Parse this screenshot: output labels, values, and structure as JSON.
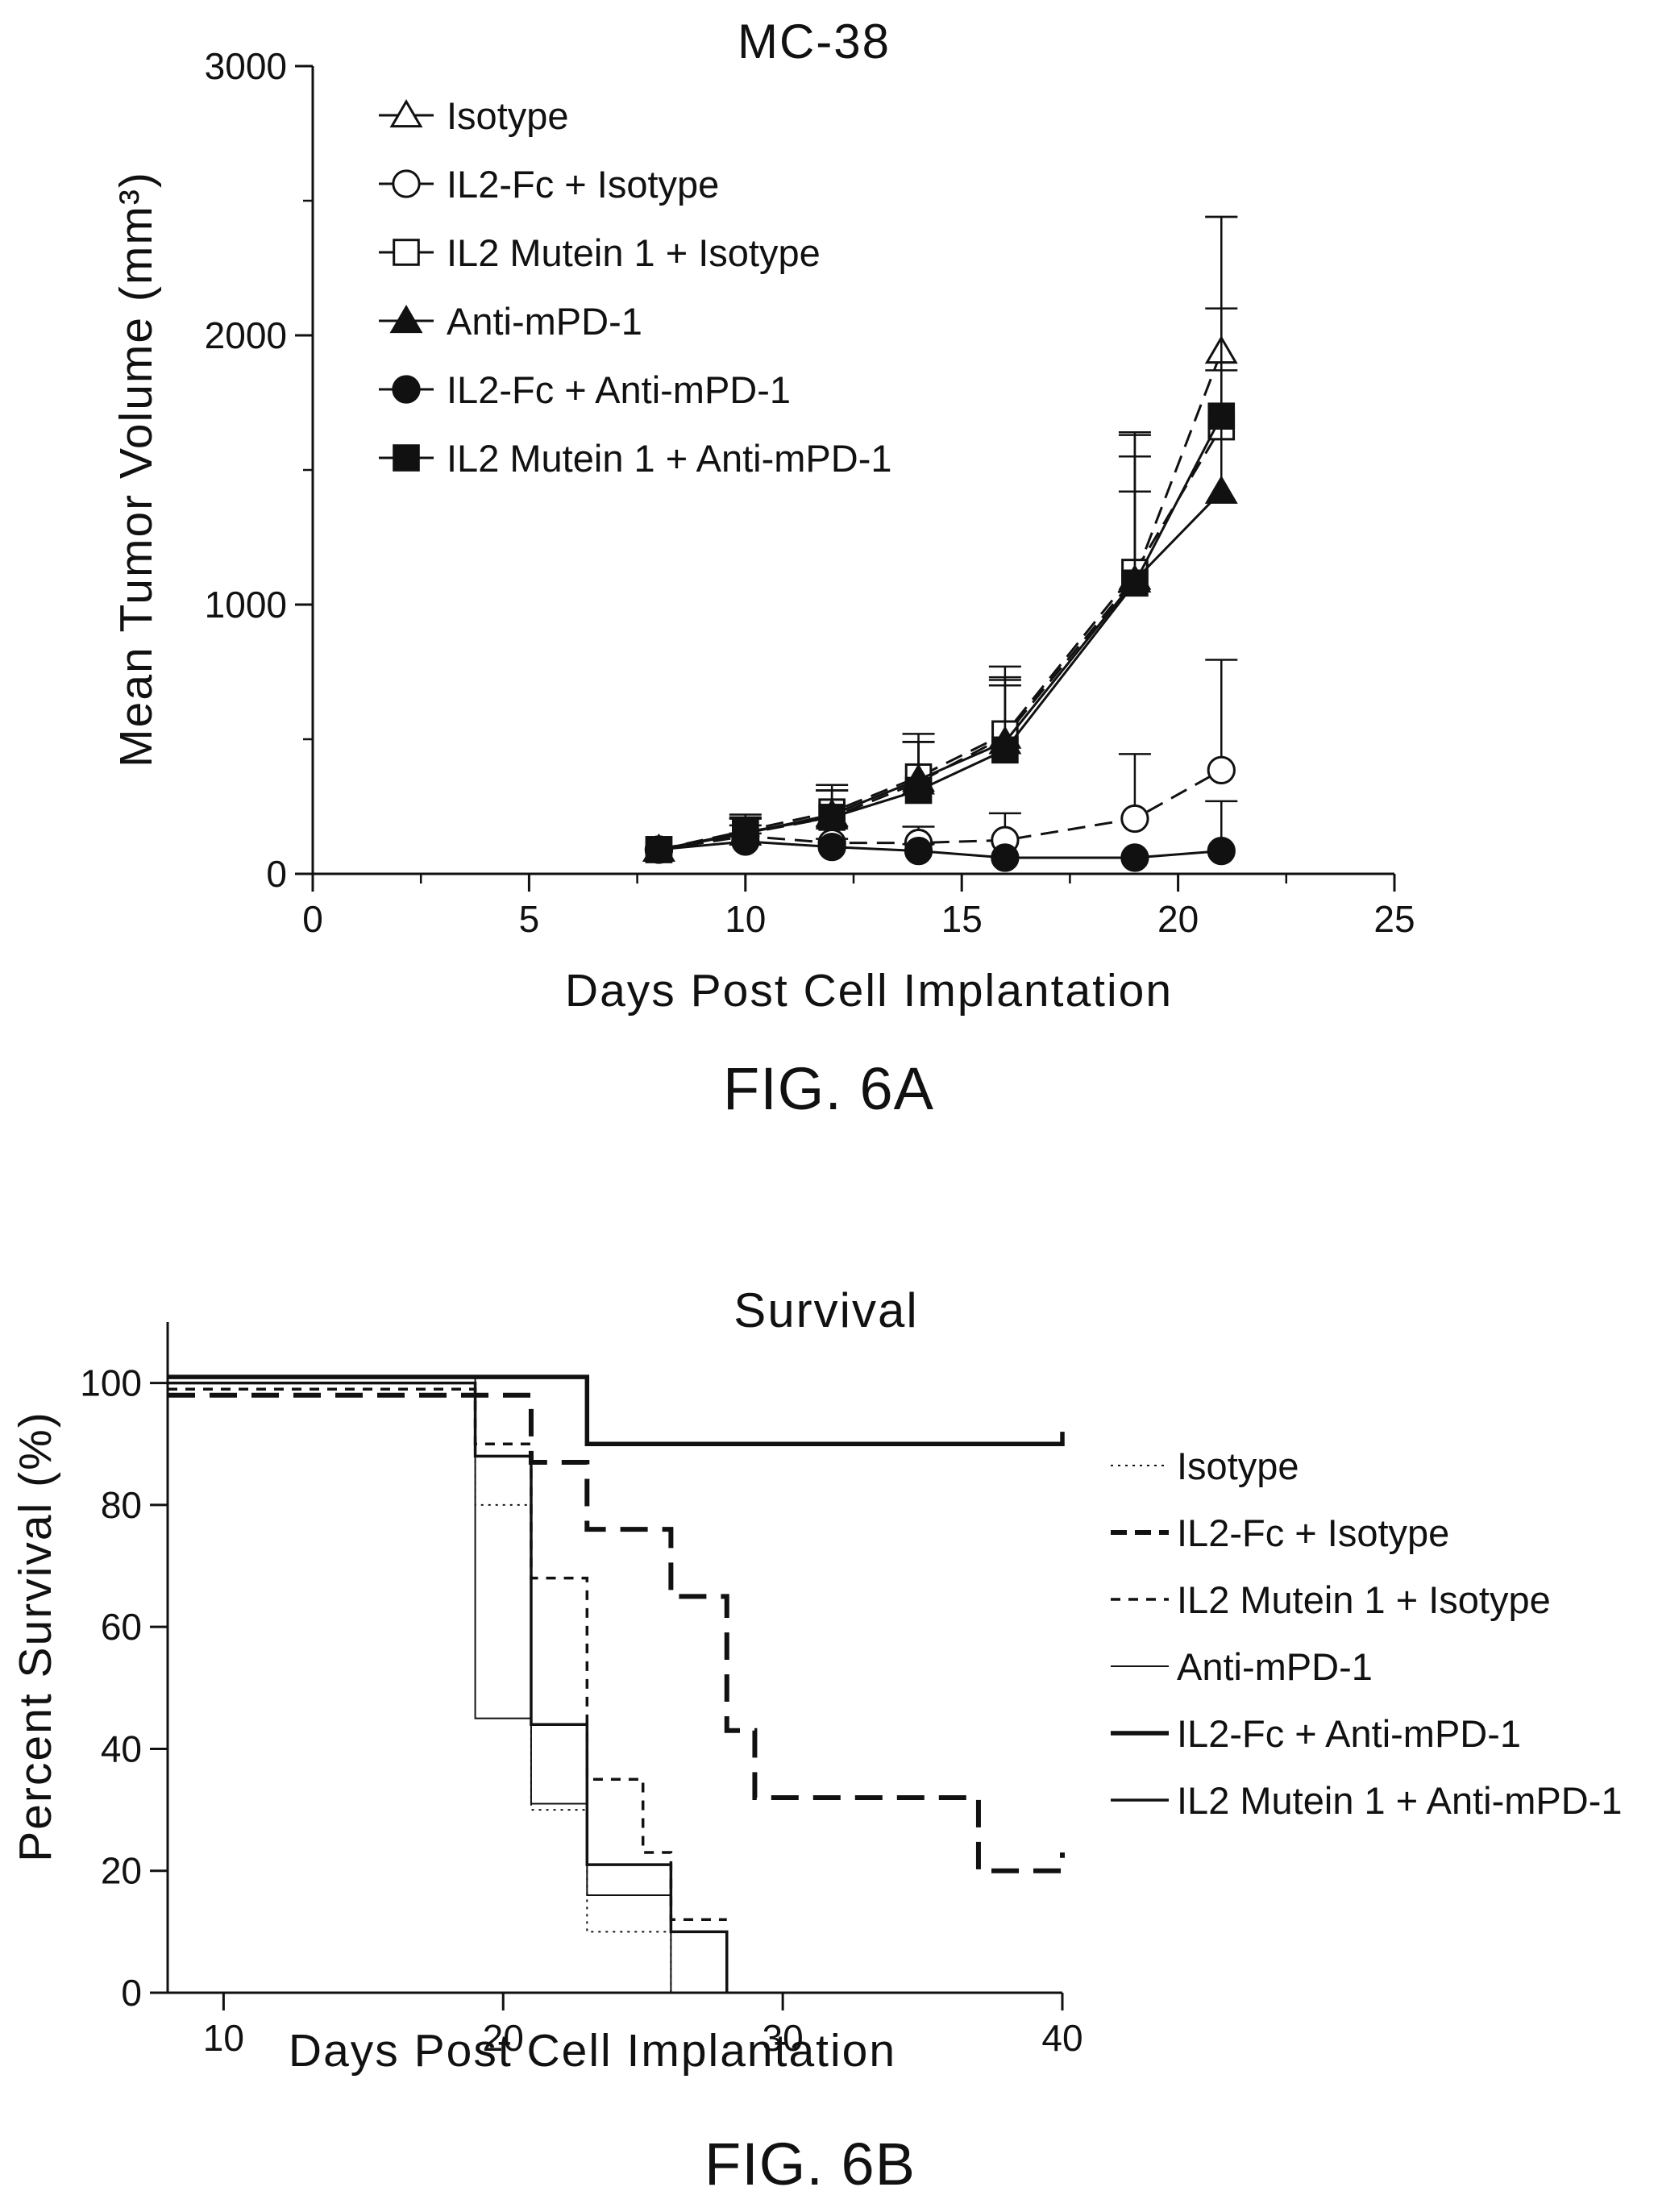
{
  "chart_data": [
    {
      "type": "line",
      "title": "MC-38",
      "xlabel": "Days Post Cell Implantation",
      "ylabel": "Mean Tumor Volume (mm³)",
      "xlim": [
        0,
        25
      ],
      "ylim": [
        0,
        3000
      ],
      "x_ticks": [
        "0",
        "5",
        "10",
        "15",
        "20",
        "25"
      ],
      "y_ticks": [
        "0",
        "1000",
        "2000",
        "3000"
      ],
      "legend_position": "top-left",
      "caption": "FIG. 6A",
      "series": [
        {
          "name": "Isotype",
          "marker": "open-triangle",
          "line": "dashed",
          "x": [
            8,
            10,
            12,
            14,
            16,
            19,
            21
          ],
          "y": [
            90,
            150,
            210,
            340,
            510,
            1100,
            1940
          ],
          "err": [
            0,
            60,
            100,
            150,
            220,
            450,
            500
          ]
        },
        {
          "name": "IL2-Fc + Isotype",
          "marker": "open-circle",
          "line": "dashed",
          "x": [
            8,
            10,
            12,
            14,
            16,
            19,
            21
          ],
          "y": [
            90,
            140,
            115,
            115,
            125,
            205,
            385
          ],
          "err": [
            0,
            40,
            60,
            60,
            100,
            240,
            410
          ]
        },
        {
          "name": "IL2 Mutein 1 + Isotype",
          "marker": "open-square",
          "line": "dashed",
          "x": [
            8,
            10,
            12,
            14,
            16,
            19,
            21
          ],
          "y": [
            90,
            160,
            230,
            360,
            520,
            1120,
            1660
          ],
          "err": [
            0,
            60,
            100,
            160,
            250,
            520,
            780
          ]
        },
        {
          "name": "Anti-mPD-1",
          "marker": "filled-triangle",
          "line": "solid",
          "x": [
            8,
            10,
            12,
            14,
            16,
            19,
            21
          ],
          "y": [
            90,
            150,
            220,
            350,
            490,
            1090,
            1420
          ],
          "err": [
            0,
            55,
            90,
            140,
            230,
            330,
            450
          ]
        },
        {
          "name": "IL2-Fc + Anti-mPD-1",
          "marker": "filled-circle",
          "line": "solid",
          "x": [
            8,
            10,
            12,
            14,
            16,
            19,
            21
          ],
          "y": [
            90,
            120,
            100,
            85,
            60,
            60,
            85
          ],
          "err": [
            0,
            30,
            30,
            25,
            0,
            0,
            185
          ]
        },
        {
          "name": "IL2 Mutein 1 + Anti-mPD-1",
          "marker": "filled-square",
          "line": "solid",
          "x": [
            8,
            10,
            12,
            14,
            16,
            19,
            21
          ],
          "y": [
            90,
            155,
            210,
            310,
            460,
            1080,
            1700
          ],
          "err": [
            0,
            50,
            100,
            180,
            240,
            550,
            400
          ]
        }
      ]
    },
    {
      "type": "line",
      "title": "Survival",
      "xlabel": "Days Post Cell Implantation",
      "ylabel": "Percent Survival (%)",
      "xlim": [
        8,
        40
      ],
      "ylim": [
        0,
        110
      ],
      "x_ticks": [
        "10",
        "20",
        "30",
        "40"
      ],
      "y_ticks": [
        "0",
        "20",
        "40",
        "60",
        "80",
        "100"
      ],
      "legend_position": "right",
      "caption": "FIG. 6B",
      "series": [
        {
          "name": "Isotype",
          "style": "dotted",
          "x": [
            8,
            19,
            21,
            23,
            26
          ],
          "y": [
            100,
            80,
            30,
            10,
            0
          ]
        },
        {
          "name": "IL2-Fc + Isotype",
          "style": "long-dash",
          "x": [
            8,
            21,
            23,
            26,
            28,
            29,
            37,
            40
          ],
          "y": [
            98,
            87,
            76,
            65,
            43,
            32,
            20,
            23
          ]
        },
        {
          "name": "IL2 Mutein 1 + Isotype",
          "style": "short-dash",
          "x": [
            8,
            19,
            21,
            23,
            25,
            26,
            28
          ],
          "y": [
            99,
            90,
            68,
            35,
            23,
            12,
            12
          ]
        },
        {
          "name": "Anti-mPD-1",
          "style": "thin-solid",
          "x": [
            8,
            19,
            21,
            23,
            26
          ],
          "y": [
            101,
            45,
            31,
            16,
            0
          ]
        },
        {
          "name": "IL2-Fc + Anti-mPD-1",
          "style": "thick-solid",
          "x": [
            8,
            23,
            40
          ],
          "y": [
            101,
            90,
            92
          ]
        },
        {
          "name": "IL2 Mutein 1 + Anti-mPD-1",
          "style": "solid",
          "x": [
            8,
            19,
            21,
            23,
            26,
            28
          ],
          "y": [
            100,
            88,
            44,
            21,
            10,
            0
          ]
        }
      ]
    }
  ]
}
